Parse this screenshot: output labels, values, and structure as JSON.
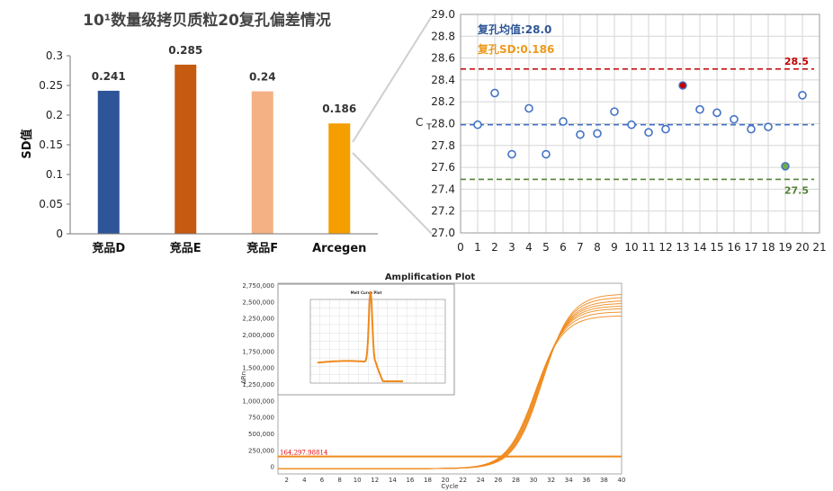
{
  "chart_data": [
    {
      "type": "bar",
      "title": "10¹数量级拷贝质粒20复孔偏差情况",
      "ylabel": "SD值",
      "categories": [
        "竞品D",
        "竞品E",
        "竞品F",
        "Arcegen"
      ],
      "values": [
        0.241,
        0.285,
        0.24,
        0.186
      ],
      "value_labels": [
        "0.241",
        "0.285",
        "0.24",
        "0.186"
      ],
      "colors": [
        "#2e5597",
        "#c55a11",
        "#f4b183",
        "#f59e00"
      ],
      "ylim": [
        0,
        0.3
      ],
      "yticks": [
        "0",
        "0.05",
        "0.1",
        "0.15",
        "0.2",
        "0.25",
        "0.3"
      ],
      "grid": false
    },
    {
      "type": "scatter",
      "ylabel": "CT",
      "x": [
        1,
        2,
        3,
        4,
        5,
        6,
        7,
        8,
        9,
        10,
        11,
        12,
        13,
        14,
        15,
        16,
        17,
        18,
        19,
        20
      ],
      "y": [
        27.99,
        28.28,
        27.72,
        28.14,
        27.72,
        28.02,
        27.9,
        27.91,
        28.11,
        27.99,
        27.92,
        27.95,
        28.35,
        28.13,
        28.1,
        28.04,
        27.95,
        27.97,
        27.61,
        28.26
      ],
      "highlight": [
        {
          "x": 13,
          "color": "#c00000"
        },
        {
          "x": 19,
          "color": "#70ad47"
        }
      ],
      "xlim": [
        0,
        21
      ],
      "ylim": [
        27.0,
        29.0
      ],
      "xticks": [
        "0",
        "1",
        "2",
        "3",
        "4",
        "5",
        "6",
        "7",
        "8",
        "9",
        "10",
        "11",
        "12",
        "13",
        "14",
        "15",
        "16",
        "17",
        "18",
        "19",
        "20",
        "21"
      ],
      "yticks": [
        "27.0",
        "27.2",
        "27.4",
        "27.6",
        "27.8",
        "28.0",
        "28.2",
        "28.4",
        "28.6",
        "28.8",
        "29.0"
      ],
      "reference_lines": [
        {
          "y": 28.5,
          "label": "28.5",
          "color": "#c00000"
        },
        {
          "y": 27.99,
          "label": "",
          "color": "#4472c4"
        },
        {
          "y": 27.49,
          "label": "27.5",
          "color": "#548235"
        }
      ],
      "annotations": [
        "复孔均值:28.0",
        "复孔SD:0.186"
      ],
      "annotation_colors": [
        "#2e5597",
        "#ed9a1b"
      ],
      "grid": true
    },
    {
      "type": "line",
      "title": "Amplification Plot",
      "xlabel": "Cycle",
      "ylabel": "ΔRn",
      "xlim": [
        1,
        40
      ],
      "ylim": [
        -100000,
        2750000
      ],
      "xticks": [
        "2",
        "4",
        "6",
        "8",
        "10",
        "12",
        "14",
        "16",
        "18",
        "20",
        "22",
        "24",
        "26",
        "28",
        "30",
        "32",
        "34",
        "36",
        "38",
        "40"
      ],
      "yticks": [
        "0",
        "250,000",
        "500,000",
        "750,000",
        "1,000,000",
        "1,250,000",
        "1,500,000",
        "1,750,000",
        "2,000,000",
        "2,250,000",
        "2,500,000",
        "2,750,000"
      ],
      "plateaus": [
        2320000,
        2380000,
        2430000,
        2470000,
        2510000,
        2550000,
        2600000,
        2650000
      ],
      "midpoint_cycle": 30.6,
      "threshold": {
        "value": 164297.98814,
        "label": "164,297.98814"
      },
      "inset": {
        "title": "Melt Curve Plot",
        "peak_x": 0.62
      }
    }
  ]
}
